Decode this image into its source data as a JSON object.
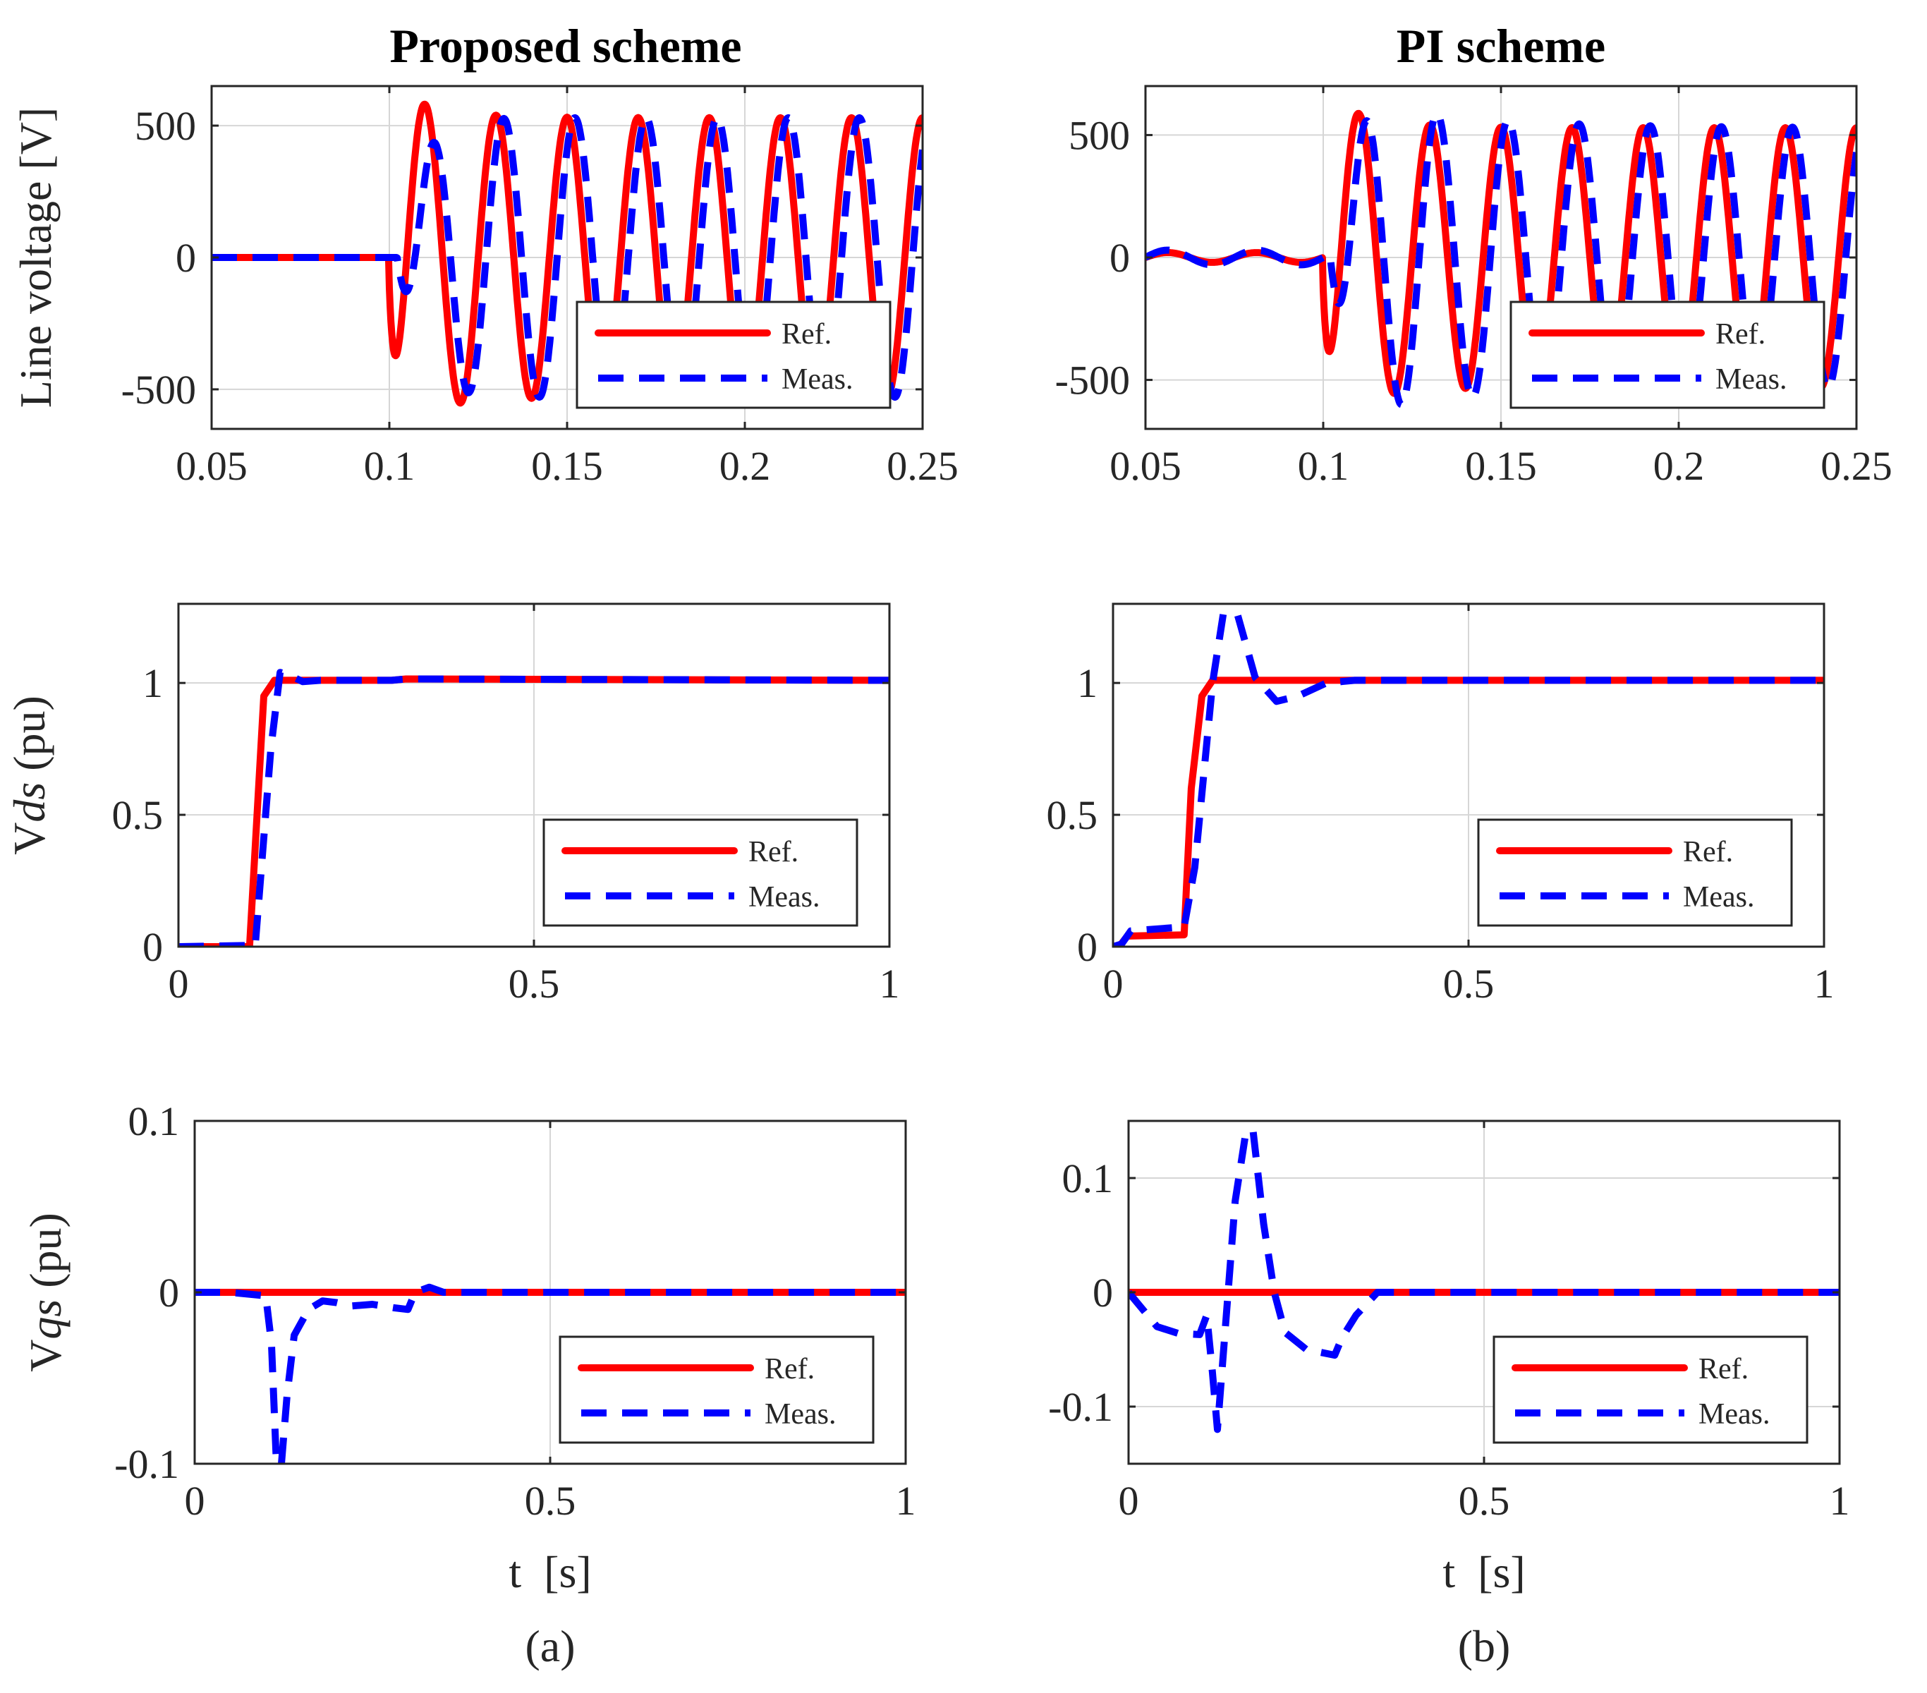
{
  "figure": {
    "panel_labels": [
      "(a)",
      "(b)"
    ],
    "column_titles": [
      "Proposed scheme",
      "PI scheme"
    ]
  },
  "colors": {
    "ref": "#ff0000",
    "meas": "#0000ff",
    "axes": "#262626",
    "grid": "#d6d6d6"
  },
  "chart_data": [
    {
      "id": "a-line",
      "type": "line",
      "title": "Proposed scheme",
      "xlabel": "",
      "ylabel": "Line voltage [V]",
      "xlim": [
        0.05,
        0.25
      ],
      "ylim": [
        -650,
        650
      ],
      "xticks": [
        0.05,
        0.1,
        0.15,
        0.2,
        0.25
      ],
      "xtick_labels": [
        "0.05",
        "0.1",
        "0.15",
        "0.2",
        "0.25"
      ],
      "yticks": [
        500,
        0,
        -500
      ],
      "ytick_labels": [
        "500",
        "0",
        "-500"
      ],
      "grid": true,
      "legend_position": "bottom-right",
      "series": [
        {
          "name": "Ref.",
          "style": "solid",
          "model": "sine",
          "t0": 0.1,
          "amp": 530,
          "freq": 50,
          "phase": -1.5708,
          "overshoot": 0.22,
          "decay": 0.012,
          "delay": 0,
          "damp": 0,
          "before": []
        },
        {
          "name": "Meas.",
          "style": "dashed",
          "model": "sine",
          "t0": 0.1,
          "amp": 530,
          "freq": 50,
          "phase": -1.5708,
          "overshoot": 0.02,
          "decay": 0.012,
          "delay": 0.0022,
          "damp": 0.006,
          "before": []
        }
      ]
    },
    {
      "id": "b-line",
      "type": "line",
      "title": "PI scheme",
      "xlabel": "",
      "ylabel": "",
      "xlim": [
        0.05,
        0.25
      ],
      "ylim": [
        -700,
        700
      ],
      "xticks": [
        0.05,
        0.1,
        0.15,
        0.2,
        0.25
      ],
      "xtick_labels": [
        "0.05",
        "0.1",
        "0.15",
        "0.2",
        "0.25"
      ],
      "yticks": [
        500,
        0,
        -500
      ],
      "ytick_labels": [
        "500",
        "0",
        "-500"
      ],
      "grid": true,
      "legend_position": "bottom-right",
      "series": [
        {
          "name": "Ref.",
          "style": "solid",
          "model": "sine",
          "t0": 0.1,
          "amp": 530,
          "freq": 50,
          "phase": -1.5708,
          "overshoot": 0.25,
          "decay": 0.012,
          "delay": 0,
          "damp": 0,
          "ripple": 20,
          "before": []
        },
        {
          "name": "Meas.",
          "style": "dashed",
          "model": "sine",
          "t0": 0.1,
          "amp": 530,
          "freq": 50,
          "phase": -1.5708,
          "overshoot": 0.3,
          "decay": 0.03,
          "delay": 0.002,
          "damp": 0.005,
          "ripple": 30,
          "before": []
        }
      ]
    },
    {
      "id": "a-vds",
      "type": "line",
      "title": "",
      "xlabel": "",
      "ylabel": "Vds (pu)",
      "ylabel_parts": [
        "V",
        "ds",
        " (pu)"
      ],
      "xlim": [
        0,
        1
      ],
      "ylim": [
        0,
        1.3
      ],
      "xticks": [
        0,
        0.5,
        1
      ],
      "xtick_labels": [
        "0",
        "0.5",
        "1"
      ],
      "yticks": [
        1,
        0.5,
        0
      ],
      "ytick_labels": [
        "1",
        "0.5",
        "0"
      ],
      "grid": true,
      "legend_position": "bottom-right",
      "series": [
        {
          "name": "Ref.",
          "style": "solid",
          "model": "points",
          "x": [
            0,
            0.1,
            0.12,
            0.135,
            0.3,
            0.32,
            1
          ],
          "y": [
            0,
            0,
            0.95,
            1.01,
            1.01,
            1.015,
            1.01
          ]
        },
        {
          "name": "Meas.",
          "style": "dashed",
          "model": "points",
          "x": [
            0,
            0.108,
            0.13,
            0.143,
            0.155,
            0.175,
            0.2,
            0.3,
            0.32,
            1
          ],
          "y": [
            0,
            0.005,
            0.75,
            1.04,
            1.03,
            1.005,
            1.01,
            1.01,
            1.015,
            1.01
          ]
        }
      ]
    },
    {
      "id": "b-vds",
      "type": "line",
      "title": "",
      "xlabel": "",
      "ylabel": "",
      "xlim": [
        0,
        1
      ],
      "ylim": [
        0,
        1.3
      ],
      "xticks": [
        0,
        0.5,
        1
      ],
      "xtick_labels": [
        "0",
        "0.5",
        "1"
      ],
      "yticks": [
        1,
        0.5,
        0
      ],
      "ytick_labels": [
        "1",
        "0.5",
        "0"
      ],
      "grid": true,
      "legend_position": "bottom-right",
      "series": [
        {
          "name": "Ref.",
          "style": "solid",
          "model": "points",
          "x": [
            0,
            0.01,
            0.02,
            0.1,
            0.11,
            0.125,
            0.14,
            1
          ],
          "y": [
            0,
            0.005,
            0.04,
            0.045,
            0.6,
            0.95,
            1.01,
            1.01
          ]
        },
        {
          "name": "Meas.",
          "style": "dashed",
          "model": "points",
          "x": [
            0,
            0.012,
            0.025,
            0.1,
            0.115,
            0.14,
            0.155,
            0.175,
            0.2,
            0.23,
            0.26,
            0.3,
            0.34,
            1
          ],
          "y": [
            0,
            0.01,
            0.06,
            0.075,
            0.3,
            1.0,
            1.26,
            1.26,
            1.02,
            0.93,
            0.95,
            1.0,
            1.01,
            1.01
          ]
        }
      ]
    },
    {
      "id": "a-vqs",
      "type": "line",
      "title": "",
      "xlabel": "t  [s]",
      "ylabel": "Vqs (pu)",
      "ylabel_parts": [
        "V",
        "qs",
        " (pu)"
      ],
      "xlim": [
        0,
        1
      ],
      "ylim": [
        -0.1,
        0.1
      ],
      "xticks": [
        0,
        0.5,
        1
      ],
      "xtick_labels": [
        "0",
        "0.5",
        "1"
      ],
      "yticks": [
        0.1,
        0,
        -0.1
      ],
      "ytick_labels": [
        "0.1",
        "0",
        "-0.1"
      ],
      "grid": true,
      "legend_position": "bottom-right",
      "series": [
        {
          "name": "Ref.",
          "style": "solid",
          "model": "points",
          "x": [
            0,
            1
          ],
          "y": [
            0,
            0
          ]
        },
        {
          "name": "Meas.",
          "style": "dashed",
          "model": "points",
          "x": [
            0,
            0.05,
            0.1,
            0.108,
            0.115,
            0.122,
            0.13,
            0.14,
            0.16,
            0.18,
            0.2,
            0.22,
            0.25,
            0.28,
            0.3,
            0.31,
            0.33,
            0.35,
            1
          ],
          "y": [
            0,
            0.0,
            -0.002,
            -0.03,
            -0.1,
            -0.1,
            -0.06,
            -0.025,
            -0.01,
            -0.005,
            -0.006,
            -0.008,
            -0.007,
            -0.009,
            -0.01,
            0.0,
            0.003,
            0.0,
            0
          ]
        }
      ]
    },
    {
      "id": "b-vqs",
      "type": "line",
      "title": "",
      "xlabel": "t  [s]",
      "ylabel": "",
      "xlim": [
        0,
        1
      ],
      "ylim": [
        -0.15,
        0.15
      ],
      "xticks": [
        0,
        0.5,
        1
      ],
      "xtick_labels": [
        "0",
        "0.5",
        "1"
      ],
      "yticks": [
        0.1,
        0,
        -0.1
      ],
      "ytick_labels": [
        "0.1",
        "0",
        "-0.1"
      ],
      "grid": true,
      "legend_position": "bottom-right",
      "series": [
        {
          "name": "Ref.",
          "style": "solid",
          "model": "points",
          "x": [
            0,
            1
          ],
          "y": [
            0,
            0
          ]
        },
        {
          "name": "Meas.",
          "style": "dashed",
          "model": "points",
          "x": [
            0,
            0.02,
            0.04,
            0.07,
            0.1,
            0.11,
            0.118,
            0.125,
            0.135,
            0.15,
            0.165,
            0.175,
            0.19,
            0.205,
            0.22,
            0.25,
            0.29,
            0.3,
            0.32,
            0.35,
            1
          ],
          "y": [
            0,
            -0.015,
            -0.03,
            -0.036,
            -0.037,
            -0.02,
            -0.07,
            -0.12,
            -0.04,
            0.08,
            0.14,
            0.142,
            0.06,
            0.0,
            -0.035,
            -0.05,
            -0.055,
            -0.04,
            -0.02,
            0.0,
            0
          ]
        }
      ]
    }
  ]
}
